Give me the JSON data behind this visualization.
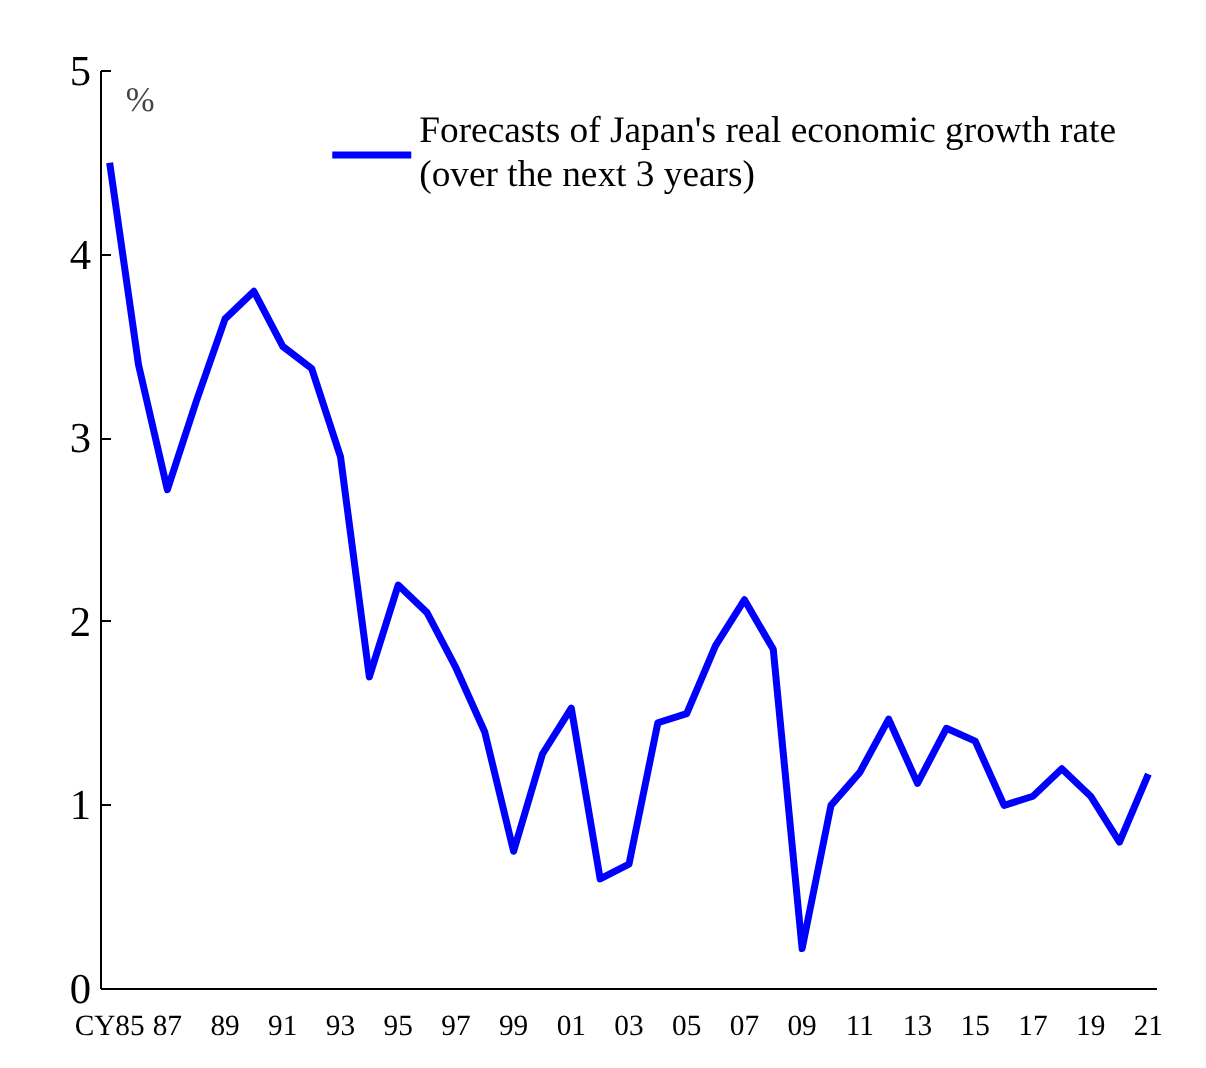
{
  "chart_data": {
    "type": "line",
    "ylabel": "%",
    "categories": [
      "CY85",
      null,
      "87",
      null,
      "89",
      null,
      "91",
      null,
      "93",
      null,
      "95",
      null,
      "97",
      null,
      "99",
      null,
      "01",
      null,
      "03",
      null,
      "05",
      null,
      "07",
      null,
      "09",
      null,
      "11",
      null,
      "13",
      null,
      "15",
      null,
      "17",
      null,
      "19",
      null,
      "21"
    ],
    "series": [
      {
        "name": "Forecasts of Japan's real economic growth rate\n(over the next 3 years)",
        "color": "#0000ff",
        "values": [
          4.5,
          3.4,
          2.72,
          3.2,
          3.65,
          3.8,
          3.5,
          3.38,
          2.9,
          1.7,
          2.2,
          2.05,
          1.75,
          1.4,
          0.75,
          1.28,
          1.53,
          0.6,
          0.68,
          1.45,
          1.5,
          1.87,
          2.12,
          1.85,
          0.22,
          1.0,
          1.18,
          1.47,
          1.12,
          1.42,
          1.35,
          1.0,
          1.05,
          1.2,
          1.05,
          0.8,
          1.17
        ]
      }
    ],
    "ylim": [
      0,
      5
    ],
    "yticks": [
      0,
      1,
      2,
      3,
      4,
      5
    ],
    "grid": false,
    "legend": "top right",
    "marker": "none",
    "line_style": "solid"
  }
}
